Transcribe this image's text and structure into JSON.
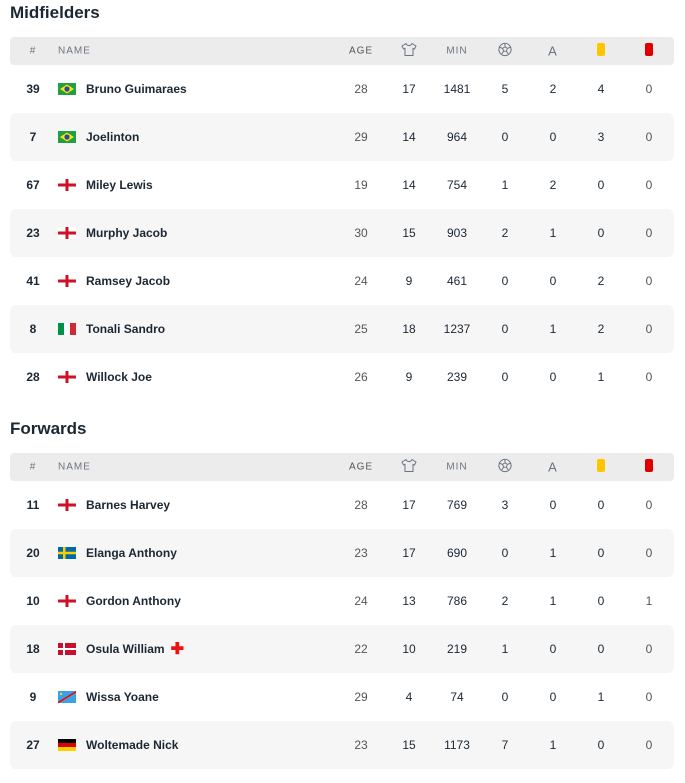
{
  "columns": {
    "num": "#",
    "name": "NAME",
    "age": "AGE",
    "min": "MIN",
    "shirt_icon": "shirt-icon",
    "goals_icon": "ball-icon",
    "assists": "A",
    "yellow_icon": "yellow-card-icon",
    "red_icon": "red-card-icon"
  },
  "colors": {
    "yellow": "#ffc600",
    "red": "#e00000"
  },
  "sections": [
    {
      "title": "Midfielders",
      "players": [
        {
          "num": "39",
          "flag": "brazil",
          "name": "Bruno Guimaraes",
          "age": "28",
          "apps": "17",
          "min": "1481",
          "goals": "5",
          "assists": "2",
          "yellow": "4",
          "red": "0"
        },
        {
          "num": "7",
          "flag": "brazil",
          "name": "Joelinton",
          "age": "29",
          "apps": "14",
          "min": "964",
          "goals": "0",
          "assists": "0",
          "yellow": "3",
          "red": "0"
        },
        {
          "num": "67",
          "flag": "england",
          "name": "Miley Lewis",
          "age": "19",
          "apps": "14",
          "min": "754",
          "goals": "1",
          "assists": "2",
          "yellow": "0",
          "red": "0"
        },
        {
          "num": "23",
          "flag": "england",
          "name": "Murphy Jacob",
          "age": "30",
          "apps": "15",
          "min": "903",
          "goals": "2",
          "assists": "1",
          "yellow": "0",
          "red": "0"
        },
        {
          "num": "41",
          "flag": "england",
          "name": "Ramsey Jacob",
          "age": "24",
          "apps": "9",
          "min": "461",
          "goals": "0",
          "assists": "0",
          "yellow": "2",
          "red": "0"
        },
        {
          "num": "8",
          "flag": "italy",
          "name": "Tonali Sandro",
          "age": "25",
          "apps": "18",
          "min": "1237",
          "goals": "0",
          "assists": "1",
          "yellow": "2",
          "red": "0"
        },
        {
          "num": "28",
          "flag": "england",
          "name": "Willock Joe",
          "age": "26",
          "apps": "9",
          "min": "239",
          "goals": "0",
          "assists": "0",
          "yellow": "1",
          "red": "0"
        }
      ]
    },
    {
      "title": "Forwards",
      "players": [
        {
          "num": "11",
          "flag": "england",
          "name": "Barnes Harvey",
          "age": "28",
          "apps": "17",
          "min": "769",
          "goals": "3",
          "assists": "0",
          "yellow": "0",
          "red": "0"
        },
        {
          "num": "20",
          "flag": "sweden",
          "name": "Elanga Anthony",
          "age": "23",
          "apps": "17",
          "min": "690",
          "goals": "0",
          "assists": "1",
          "yellow": "0",
          "red": "0"
        },
        {
          "num": "10",
          "flag": "england",
          "name": "Gordon Anthony",
          "age": "24",
          "apps": "13",
          "min": "786",
          "goals": "2",
          "assists": "1",
          "yellow": "0",
          "red": "1"
        },
        {
          "num": "18",
          "flag": "denmark",
          "name": "Osula William",
          "injured": true,
          "age": "22",
          "apps": "10",
          "min": "219",
          "goals": "1",
          "assists": "0",
          "yellow": "0",
          "red": "0"
        },
        {
          "num": "9",
          "flag": "dr-congo",
          "name": "Wissa Yoane",
          "age": "29",
          "apps": "4",
          "min": "74",
          "goals": "0",
          "assists": "0",
          "yellow": "1",
          "red": "0"
        },
        {
          "num": "27",
          "flag": "germany",
          "name": "Woltemade Nick",
          "age": "23",
          "apps": "15",
          "min": "1173",
          "goals": "7",
          "assists": "1",
          "yellow": "0",
          "red": "0"
        }
      ]
    }
  ]
}
